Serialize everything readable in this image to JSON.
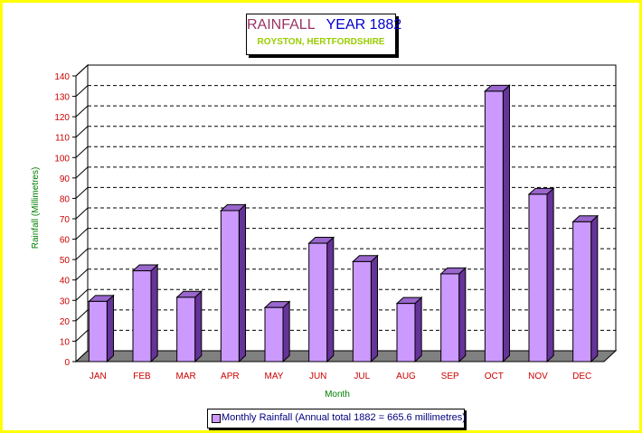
{
  "chart_data": {
    "type": "bar",
    "title": "RAINFALL",
    "title_year": "YEAR 1882",
    "subtitle": "ROYSTON, HERTFORDSHIRE",
    "xlabel": "Month",
    "ylabel": "Rainfall (Millimetres)",
    "categories": [
      "JAN",
      "FEB",
      "MAR",
      "APR",
      "MAY",
      "JUN",
      "JUL",
      "AUG",
      "SEP",
      "OCT",
      "NOV",
      "DEC"
    ],
    "series": [
      {
        "name": "Monthly Rainfall (Annual total 1882 = 665.6 millimetres)",
        "values": [
          29.5,
          44.5,
          31.5,
          74,
          26.5,
          58,
          49,
          28.5,
          43,
          132.5,
          82,
          68.5
        ]
      }
    ],
    "yticks": [
      0,
      10,
      20,
      30,
      40,
      50,
      60,
      70,
      80,
      90,
      100,
      110,
      120,
      130,
      140
    ],
    "ylim": [
      0,
      140
    ],
    "grid": true,
    "legend": "bottom",
    "colors": {
      "bar_front": "#cc99ff",
      "bar_top": "#9966cc",
      "bar_side": "#663399",
      "floor": "#808080",
      "axis_text": "#cc0000",
      "axis_title": "#008000",
      "border": "#ffff00"
    }
  }
}
